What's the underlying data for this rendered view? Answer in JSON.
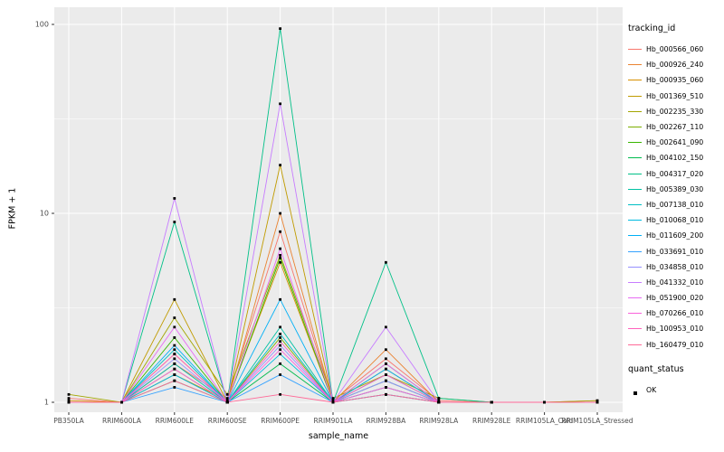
{
  "chart_data": {
    "type": "line",
    "title": "",
    "xlabel": "sample_name",
    "ylabel": "FPKM + 1",
    "y_scale": "log10",
    "y_ticks": [
      1,
      10,
      100
    ],
    "ylim": [
      0.95,
      110
    ],
    "grid": true,
    "panel_bg": "#EBEBEB",
    "grid_color": "#FFFFFF",
    "points_color": "#000000",
    "legend_position": "right",
    "categories": [
      "PB350LA",
      "RRIM600LA",
      "RRIM600LE",
      "RRIM600SE",
      "RRIM600PE",
      "RRIM901LA",
      "RRIM928BA",
      "RRIM928LA",
      "RRIM928LE",
      "RRIM105LA_Cold",
      "RRIM105LA_Stressed"
    ],
    "series": [
      {
        "name": "Hb_000566_060",
        "color": "#F8766D",
        "values": [
          1.05,
          1,
          1.6,
          1.05,
          8,
          1.02,
          1.7,
          1.02,
          1,
          1,
          1.02
        ]
      },
      {
        "name": "Hb_000926_240",
        "color": "#EA8331",
        "values": [
          1,
          1,
          1.8,
          1,
          10,
          1,
          1.9,
          1,
          1,
          1,
          1
        ]
      },
      {
        "name": "Hb_000935_060",
        "color": "#D89000",
        "values": [
          1.02,
          1,
          1.4,
          1.02,
          5.5,
          1,
          1.3,
          1,
          1,
          1,
          1
        ]
      },
      {
        "name": "Hb_001369_510",
        "color": "#C09B00",
        "values": [
          1,
          1,
          3.5,
          1,
          18,
          1,
          1.5,
          1,
          1,
          1,
          1
        ]
      },
      {
        "name": "Hb_002235_330",
        "color": "#A3A500",
        "values": [
          1.1,
          1,
          2.8,
          1.1,
          6,
          1.05,
          1.4,
          1.05,
          1,
          1,
          1.02
        ]
      },
      {
        "name": "Hb_002267_110",
        "color": "#7CAE00",
        "values": [
          1,
          1,
          1.5,
          1,
          2.2,
          1,
          1.2,
          1,
          1,
          1,
          1
        ]
      },
      {
        "name": "Hb_002641_090",
        "color": "#39B600",
        "values": [
          1,
          1,
          2.2,
          1,
          5.8,
          1,
          1.6,
          1,
          1,
          1,
          1
        ]
      },
      {
        "name": "Hb_004102_150",
        "color": "#00BB4E",
        "values": [
          1,
          1,
          1.3,
          1,
          1.6,
          1,
          1.1,
          1,
          1,
          1,
          1
        ]
      },
      {
        "name": "Hb_004317_020",
        "color": "#00C087",
        "values": [
          1,
          1,
          9,
          1,
          95,
          1,
          5.5,
          1.05,
          1,
          1,
          1
        ]
      },
      {
        "name": "Hb_005389_030",
        "color": "#00C1A3",
        "values": [
          1,
          1,
          1.6,
          1,
          2.5,
          1,
          1.3,
          1,
          1,
          1,
          1
        ]
      },
      {
        "name": "Hb_007138_010",
        "color": "#00BFC4",
        "values": [
          1,
          1,
          1.9,
          1,
          2.3,
          1,
          1.4,
          1,
          1,
          1,
          1
        ]
      },
      {
        "name": "Hb_010068_010",
        "color": "#00BAE0",
        "values": [
          1,
          1,
          1.4,
          1,
          1.8,
          1,
          1.2,
          1,
          1,
          1,
          1
        ]
      },
      {
        "name": "Hb_011609_200",
        "color": "#00B0F6",
        "values": [
          1,
          1,
          2.0,
          1,
          3.5,
          1,
          1.5,
          1,
          1,
          1,
          1
        ]
      },
      {
        "name": "Hb_033691_010",
        "color": "#35A2FF",
        "values": [
          1,
          1,
          1.2,
          1,
          1.4,
          1,
          1.1,
          1,
          1,
          1,
          1
        ]
      },
      {
        "name": "Hb_034858_010",
        "color": "#9590FF",
        "values": [
          1,
          1,
          1.7,
          1,
          2.0,
          1,
          1.3,
          1,
          1,
          1,
          1
        ]
      },
      {
        "name": "Hb_041332_010",
        "color": "#C77CFF",
        "values": [
          1,
          1,
          12,
          1,
          38,
          1,
          2.5,
          1,
          1,
          1,
          1
        ]
      },
      {
        "name": "Hb_051900_020",
        "color": "#E76BF3",
        "values": [
          1,
          1,
          2.5,
          1,
          6.5,
          1,
          1.6,
          1,
          1,
          1,
          1
        ]
      },
      {
        "name": "Hb_070266_010",
        "color": "#FA62DB",
        "values": [
          1,
          1,
          1.5,
          1,
          1.9,
          1,
          1.2,
          1,
          1,
          1,
          1
        ]
      },
      {
        "name": "Hb_100953_010",
        "color": "#FF62BC",
        "values": [
          1,
          1,
          1.8,
          1,
          2.1,
          1,
          1.4,
          1,
          1,
          1,
          1
        ]
      },
      {
        "name": "Hb_160479_010",
        "color": "#FF6A98",
        "values": [
          1,
          1,
          1.3,
          1,
          1.1,
          1,
          1.1,
          1,
          1,
          1,
          1
        ]
      }
    ]
  },
  "legend": {
    "tracking_title": "tracking_id",
    "quant_title": "quant_status",
    "quant_items": [
      {
        "label": "OK"
      }
    ]
  }
}
